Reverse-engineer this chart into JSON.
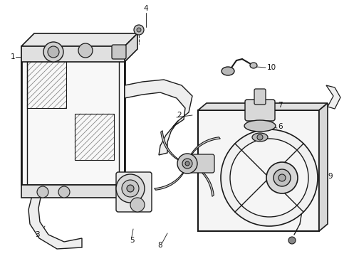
{
  "bg_color": "#ffffff",
  "line_color": "#1a1a1a",
  "label_color": "#111111",
  "figsize": [
    4.9,
    3.6
  ],
  "dpi": 100,
  "label_fontsize": 7.5
}
